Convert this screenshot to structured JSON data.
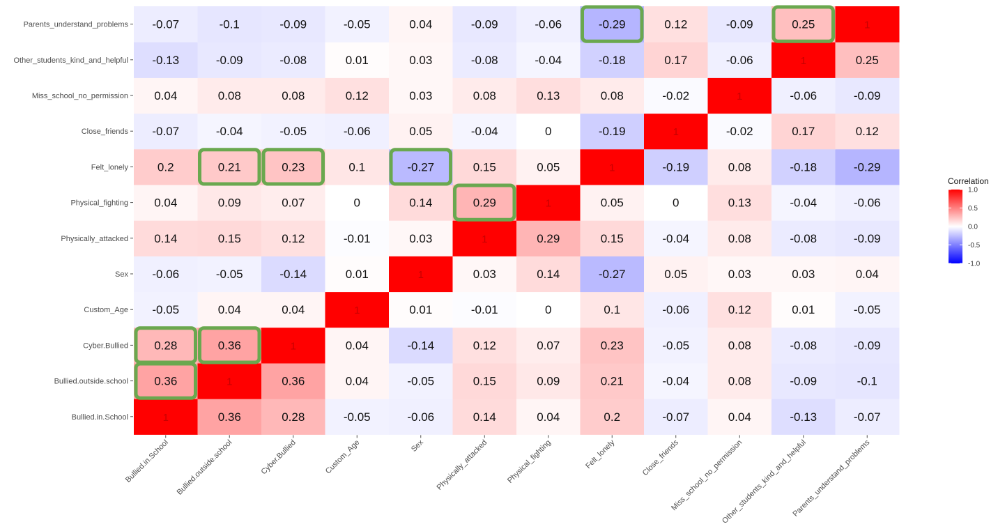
{
  "chart_data": {
    "type": "heatmap",
    "variables": [
      "Bullied.in.School",
      "Bullied.outside.school",
      "Cyber.Bullied",
      "Custom_Age",
      "Sex",
      "Physically_attacked",
      "Physical_fighting",
      "Felt_lonely",
      "Close_friends",
      "Miss_school_no_permission",
      "Other_students_kind_and_helpful",
      "Parents_understand_problems"
    ],
    "matrix": [
      [
        1,
        0.36,
        0.28,
        -0.05,
        -0.06,
        0.14,
        0.04,
        0.2,
        -0.07,
        0.04,
        -0.13,
        -0.07
      ],
      [
        0.36,
        1,
        0.36,
        0.04,
        -0.05,
        0.15,
        0.09,
        0.21,
        -0.04,
        0.08,
        -0.09,
        -0.1
      ],
      [
        0.28,
        0.36,
        1,
        0.04,
        -0.14,
        0.12,
        0.07,
        0.23,
        -0.05,
        0.08,
        -0.08,
        -0.09
      ],
      [
        -0.05,
        0.04,
        0.04,
        1,
        0.01,
        -0.01,
        0,
        0.1,
        -0.06,
        0.12,
        0.01,
        -0.05
      ],
      [
        -0.06,
        -0.05,
        -0.14,
        0.01,
        1,
        0.03,
        0.14,
        -0.27,
        0.05,
        0.03,
        0.03,
        0.04
      ],
      [
        0.14,
        0.15,
        0.12,
        -0.01,
        0.03,
        1,
        0.29,
        0.15,
        -0.04,
        0.08,
        -0.08,
        -0.09
      ],
      [
        0.04,
        0.09,
        0.07,
        0,
        0.14,
        0.29,
        1,
        0.05,
        0,
        0.13,
        -0.04,
        -0.06
      ],
      [
        0.2,
        0.21,
        0.23,
        0.1,
        -0.27,
        0.15,
        0.05,
        1,
        -0.19,
        0.08,
        -0.18,
        -0.29
      ],
      [
        -0.07,
        -0.04,
        -0.05,
        -0.06,
        0.05,
        -0.04,
        0,
        -0.19,
        1,
        -0.02,
        0.17,
        0.12
      ],
      [
        0.04,
        0.08,
        0.08,
        0.12,
        0.03,
        0.08,
        0.13,
        0.08,
        -0.02,
        1,
        -0.06,
        -0.09
      ],
      [
        -0.13,
        -0.09,
        -0.08,
        0.01,
        0.03,
        -0.08,
        -0.04,
        -0.18,
        0.17,
        -0.06,
        1,
        0.25
      ],
      [
        -0.07,
        -0.1,
        -0.09,
        -0.05,
        0.04,
        -0.09,
        -0.06,
        -0.29,
        0.12,
        -0.09,
        0.25,
        1
      ]
    ],
    "highlighted_cells": [
      {
        "row": "Parents_understand_problems",
        "col": "Felt_lonely"
      },
      {
        "row": "Parents_understand_problems",
        "col": "Other_students_kind_and_helpful"
      },
      {
        "row": "Felt_lonely",
        "col": "Bullied.outside.school"
      },
      {
        "row": "Felt_lonely",
        "col": "Cyber.Bullied"
      },
      {
        "row": "Felt_lonely",
        "col": "Sex"
      },
      {
        "row": "Physical_fighting",
        "col": "Physically_attacked"
      },
      {
        "row": "Cyber.Bullied",
        "col": "Bullied.in.School"
      },
      {
        "row": "Cyber.Bullied",
        "col": "Bullied.outside.school"
      },
      {
        "row": "Bullied.outside.school",
        "col": "Bullied.in.School"
      }
    ],
    "highlight_color": "#6aa84f",
    "legend": {
      "title": "Correlation",
      "ticks": [
        {
          "value": 1.0,
          "label": "1.0"
        },
        {
          "value": 0.5,
          "label": "0.5"
        },
        {
          "value": 0.0,
          "label": "0.0"
        },
        {
          "value": -0.5,
          "label": "-0.5"
        },
        {
          "value": -1.0,
          "label": "-1.0"
        }
      ],
      "position": "right"
    },
    "color_scale": {
      "low": "#0000ff",
      "mid": "#ffffff",
      "high": "#ff0000",
      "range": [
        -1,
        1
      ]
    },
    "title": "",
    "xlabel": "",
    "ylabel": ""
  }
}
